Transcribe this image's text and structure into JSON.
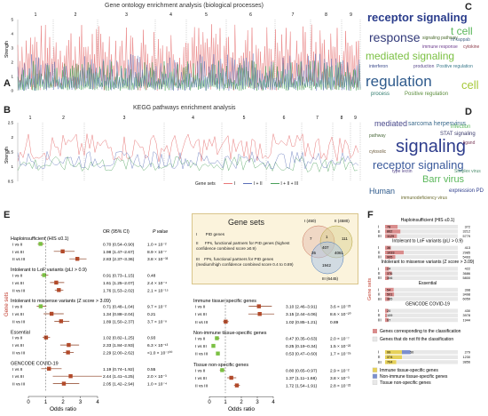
{
  "panels": {
    "A": {
      "label": "A",
      "title": "Gene ontology enrichment analysis (biological processes)",
      "ylabel": "Strength",
      "yticks": [
        "0",
        "1",
        "2",
        "3",
        "4",
        "5"
      ],
      "segments": [
        "1",
        "2",
        "3",
        "4",
        "5",
        "6",
        "7",
        "8",
        "9"
      ]
    },
    "B": {
      "label": "B",
      "title": "KEGG pathways enrichment analysis",
      "ylabel": "Strength",
      "yticks": [
        "0.5",
        "1",
        "1.5",
        "2",
        "2.5"
      ],
      "segments": [
        "1",
        "2",
        "3",
        "4",
        "5",
        "6",
        "7",
        "8",
        "9"
      ],
      "legend_title": "Gene sets",
      "legend_items": [
        "I",
        "I + II",
        "I + II + III"
      ]
    },
    "C": {
      "label": "C",
      "words": [
        "receptor signaling",
        "t cell",
        "response",
        "mediated signaling",
        "regulation",
        "cell",
        "production",
        "Positive regulation",
        "process",
        "interferon",
        "signaling pathway",
        "nf kappab",
        "Positive regulation",
        "immune response",
        "cytokine"
      ]
    },
    "D": {
      "label": "D",
      "words": [
        "signaling",
        "receptor signaling",
        "mediated",
        "sarcoma herpesvirus",
        "infection",
        "Barr virus",
        "Human",
        "type lectin",
        "STAT signaling",
        "expression PD",
        "Simplex virus",
        "immunodeficiency virus",
        "ligand",
        "pathway",
        "cytosolic"
      ]
    },
    "E": {
      "label": "E",
      "xlabel": "Odds ratio",
      "ylabel": "Gene sets",
      "xticks": [
        "0",
        "1",
        "2",
        "3",
        "4"
      ],
      "col_or": "OR (95% CI)",
      "col_p": "P value",
      "left_groups": [
        {
          "title": "Haploinsufficient (HIS ≤0.1)",
          "rows": [
            {
              "lab": "I vs II",
              "or": "0.70 (0.54–0.90)",
              "p": "1.0 × 10⁻²",
              "est": 0.7,
              "lo": 0.54,
              "hi": 0.9
            },
            {
              "lab": "I vs III",
              "or": "1.98 (1.47–2.67)",
              "p": "8.9 × 10⁻⁷",
              "est": 1.98,
              "lo": 1.47,
              "hi": 2.67
            },
            {
              "lab": "II vs III",
              "or": "2.83 (2.37–3.36)",
              "p": "3.8 × 10⁻³³",
              "est": 2.83,
              "lo": 2.37,
              "hi": 3.36
            }
          ]
        },
        {
          "title": "Intolerant to LoF variants (pLI > 0.9)",
          "rows": [
            {
              "lab": "I vs II",
              "or": "0.91 (0.73–1.15)",
              "p": "0.48",
              "est": 0.91,
              "lo": 0.73,
              "hi": 1.15
            },
            {
              "lab": "I vs III",
              "or": "1.61 (1.25–2.07)",
              "p": "2.4 × 10⁻⁴",
              "est": 1.61,
              "lo": 1.25,
              "hi": 2.07
            },
            {
              "lab": "II vs III",
              "or": "1.76 (1.53–2.02)",
              "p": "2.1 × 10⁻¹⁵",
              "est": 1.76,
              "lo": 1.53,
              "hi": 2.02
            }
          ]
        },
        {
          "title": "Intolerant to missense variants (Z score > 3.09)",
          "rows": [
            {
              "lab": "I vs II",
              "or": "0.71 (0.48–1.04)",
              "p": "9.7 × 10⁻²",
              "est": 0.71,
              "lo": 0.48,
              "hi": 1.04
            },
            {
              "lab": "I vs III",
              "or": "1.34 (0.88–2.04)",
              "p": "0.21",
              "est": 1.34,
              "lo": 0.88,
              "hi": 2.04
            },
            {
              "lab": "II vs III",
              "or": "1.89 (1.50–2.37)",
              "p": "3.7 × 10⁻⁸",
              "est": 1.89,
              "lo": 1.5,
              "hi": 2.37
            }
          ]
        },
        {
          "title": "Essential",
          "rows": [
            {
              "lab": "I vs II",
              "or": "1.02 (0.82–1.25)",
              "p": "0.93",
              "est": 1.02,
              "lo": 0.82,
              "hi": 1.25
            },
            {
              "lab": "I vs III",
              "or": "2.33 (1.84–2.93)",
              "p": "6.3 × 10⁻¹³",
              "est": 2.33,
              "lo": 1.84,
              "hi": 2.93
            },
            {
              "lab": "II vs III",
              "or": "2.29 (2.00–2.62)",
              "p": "<1.0 × 10⁻¹⁰⁰",
              "est": 2.29,
              "lo": 2.0,
              "hi": 2.62
            }
          ]
        },
        {
          "title": "GENCODE COVID-19",
          "rows": [
            {
              "lab": "I vs II",
              "or": "1.19 (0.74–1.92)",
              "p": "0.55",
              "est": 1.19,
              "lo": 0.74,
              "hi": 1.92
            },
            {
              "lab": "I vs III",
              "or": "2.44 (1.41–4.25)",
              "p": "2.0 × 10⁻³",
              "est": 2.44,
              "lo": 1.41,
              "hi": 4.25
            },
            {
              "lab": "II vs III",
              "or": "2.05 (1.42–2.94)",
              "p": "1.0 × 10⁻⁴",
              "est": 2.05,
              "lo": 1.42,
              "hi": 2.94
            }
          ]
        }
      ],
      "right_groups": [
        {
          "title": "Immune tissue-specific genes",
          "rows": [
            {
              "lab": "I vs II",
              "or": "3.10 (2.46–3.91)",
              "p": "3.6 × 10⁻²³",
              "est": 3.1,
              "lo": 2.46,
              "hi": 3.91
            },
            {
              "lab": "I vs III",
              "or": "3.15 (2.44–4.06)",
              "p": "8.6 × 10⁻²⁰",
              "est": 3.15,
              "lo": 2.44,
              "hi": 4.06
            },
            {
              "lab": "II vs III",
              "or": "1.02 (0.85–1.21)",
              "p": "0.89",
              "est": 1.02,
              "lo": 0.85,
              "hi": 1.21
            }
          ]
        },
        {
          "title": "Non-immune tissue-specific genes",
          "rows": [
            {
              "lab": "I vs II",
              "or": "0.47 (0.35–0.63)",
              "p": "2.0 × 10⁻⁷",
              "est": 0.47,
              "lo": 0.35,
              "hi": 0.63
            },
            {
              "lab": "I vs III",
              "or": "0.25 (0.19–0.34)",
              "p": "1.5 × 10⁻²²",
              "est": 0.25,
              "lo": 0.19,
              "hi": 0.34
            },
            {
              "lab": "II vs III",
              "or": "0.53 (0.47–0.60)",
              "p": "1.7 × 10⁻²⁶",
              "est": 0.53,
              "lo": 0.47,
              "hi": 0.6
            }
          ]
        },
        {
          "title": "Tissue non-specific genes",
          "rows": [
            {
              "lab": "I vs II",
              "or": "0.80 (0.65–0.97)",
              "p": "2.9 × 10⁻²",
              "est": 0.8,
              "lo": 0.65,
              "hi": 0.97
            },
            {
              "lab": "I vs III",
              "or": "1.37 (1.11–1.68)",
              "p": "3.8 × 10⁻³",
              "est": 1.37,
              "lo": 1.11,
              "hi": 1.68
            },
            {
              "lab": "II vs III",
              "or": "1.72 (1.54–1.91)",
              "p": "2.8 × 10⁻²²",
              "est": 1.72,
              "lo": 1.54,
              "hi": 1.91
            }
          ]
        }
      ],
      "gene_sets_box": {
        "title": "Gene sets",
        "items": [
          {
            "num": "I",
            "text": "PID genes"
          },
          {
            "num": "II",
            "text": "FPs, functional partners for PID genes (highest confidence combined score ≥0.9)"
          },
          {
            "num": "III",
            "text": "FPs, functional partners for PID genes (medium/high confidence combined score 0.4 to 0.89)"
          }
        ],
        "venn": {
          "top_left": "I (450)",
          "top_right": "II (4580)",
          "bottom": "III (6445)",
          "regions": [
            "7",
            "1",
            "111",
            "407",
            "35",
            "4061",
            "1942"
          ]
        }
      }
    },
    "F": {
      "label": "F",
      "ylabel": "Gene sets",
      "sections": [
        {
          "title": "Haploinsufficient (HIS ≤0.1)",
          "rows": [
            [
              "I",
              "78",
              "372"
            ],
            [
              "II",
              "862",
              "3212"
            ],
            [
              "III",
              "1129",
              "5779"
            ]
          ]
        },
        {
          "title": "Intolerant to LoF variants (pLI > 0.9)",
          "rows": [
            [
              "I",
              "36",
              "413"
            ],
            [
              "II",
              "1033",
              "2985"
            ],
            [
              "III",
              "905",
              "5493"
            ]
          ]
        },
        {
          "title": "Intolerant to missense variants (Z score > 3.09)",
          "rows": [
            [
              "I",
              "24",
              "422"
            ],
            [
              "II",
              "376",
              "3686"
            ],
            [
              "III",
              "306",
              "5800"
            ]
          ]
        },
        {
          "title": "Essential",
          "rows": [
            [
              "I",
              "54",
              "398"
            ],
            [
              "II",
              "501",
              "3498"
            ],
            [
              "III",
              "385",
              "6059"
            ]
          ]
        },
        {
          "title": "GENCODE COVID-19",
          "rows": [
            [
              "I",
              "20",
              "430"
            ],
            [
              "II",
              "109",
              "3978"
            ],
            [
              "III",
              "97",
              "1944"
            ]
          ]
        }
      ],
      "bottom_rows": [
        [
          "I",
          "99",
          "50",
          "279"
        ],
        [
          "II",
          "374",
          "",
          "1230"
        ],
        [
          "III",
          "704",
          "",
          "3856"
        ]
      ],
      "legend1": [
        "Genes corresponding to the classification",
        "Genes that do not fit the classification"
      ],
      "legend2": [
        "Immune tissue-specific genes",
        "Non-immune tissue-specific genes",
        "Tissue non-specific genes"
      ]
    }
  },
  "colors": {
    "red": "#e8797a",
    "green": "#4aa05a",
    "blue": "#5a6fb8",
    "or_brown": "#b24a2a",
    "or_green": "#7bc043",
    "ci": "#8a3b1e"
  }
}
